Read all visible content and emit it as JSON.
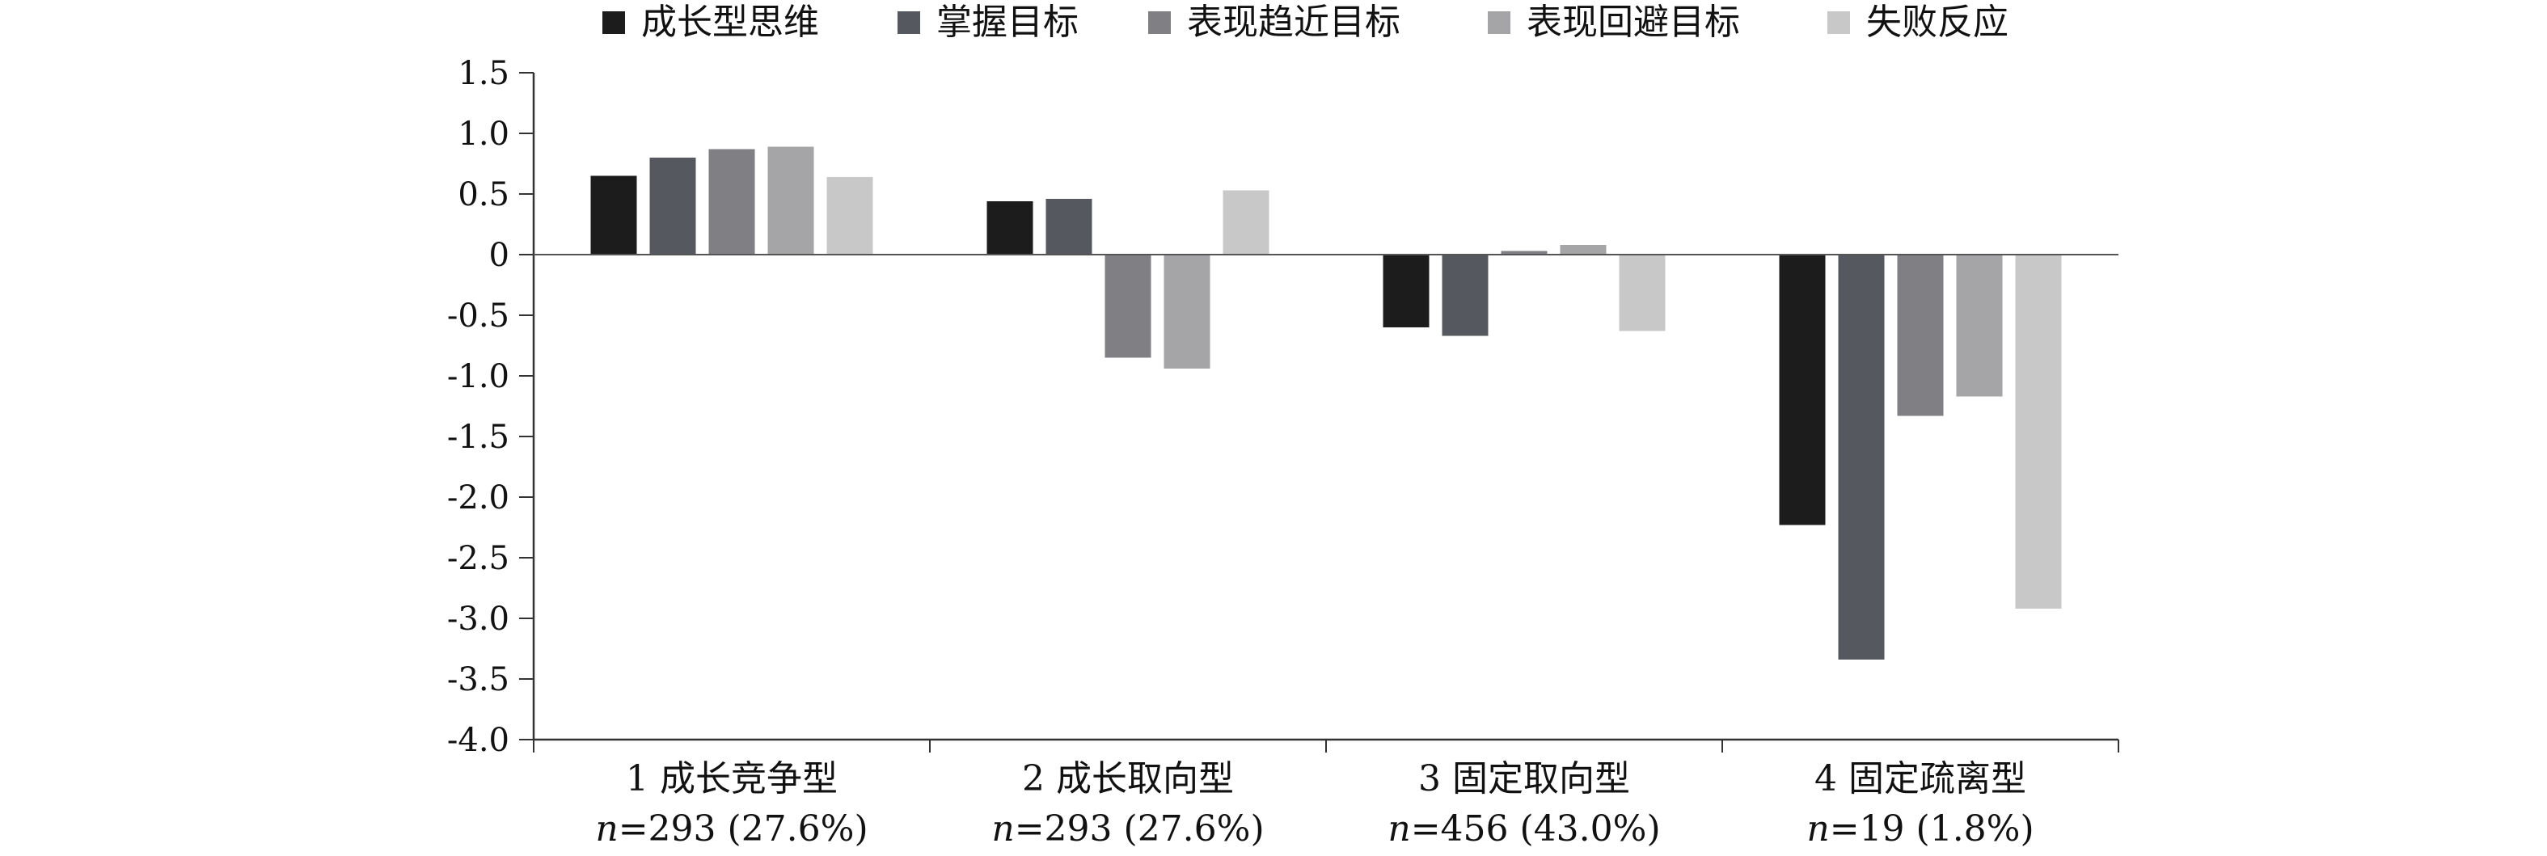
{
  "chart_data": {
    "type": "bar",
    "title": "",
    "xlabel": "",
    "ylabel": "",
    "ylim": [
      -4.0,
      1.5
    ],
    "yticks": [
      1.5,
      1.0,
      0.5,
      0,
      -0.5,
      -1.0,
      -1.5,
      -2.0,
      -2.5,
      -3.0,
      -3.5,
      -4.0
    ],
    "ytick_labels": [
      "1.5",
      "1.0",
      "0.5",
      "0",
      "-0.5",
      "-1.0",
      "-1.5",
      "-2.0",
      "-2.5",
      "-3.0",
      "-3.5",
      "-4.0"
    ],
    "grid": false,
    "legend_position": "top",
    "categories": [
      {
        "label": "1 成长竞争型",
        "n_prefix": "n",
        "n_text": "=293 (27.6%)"
      },
      {
        "label": "2 成长取向型",
        "n_prefix": "n",
        "n_text": "=293 (27.6%)"
      },
      {
        "label": "3 固定取向型",
        "n_prefix": "n",
        "n_text": "=456 (43.0%)"
      },
      {
        "label": "4 固定疏离型",
        "n_prefix": "n",
        "n_text": "=19 (1.8%)"
      }
    ],
    "series": [
      {
        "name": "成长型思维",
        "color": "#1c1c1c",
        "values": [
          0.65,
          0.44,
          -0.6,
          -2.23
        ]
      },
      {
        "name": "掌握目标",
        "color": "#55585e",
        "values": [
          0.8,
          0.46,
          -0.67,
          -3.34
        ]
      },
      {
        "name": "表现趋近目标",
        "color": "#7f7f84",
        "values": [
          0.87,
          -0.85,
          0.03,
          -1.33
        ]
      },
      {
        "name": "表现回避目标",
        "color": "#a5a5a7",
        "values": [
          0.89,
          -0.94,
          0.08,
          -1.17
        ]
      },
      {
        "name": "失败反应",
        "color": "#c8c8c9",
        "values": [
          0.64,
          0.53,
          -0.63,
          -2.92
        ]
      }
    ]
  }
}
